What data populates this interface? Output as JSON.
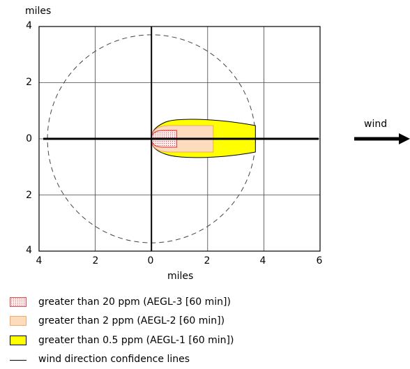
{
  "diagram": {
    "y_axis_title": "miles",
    "x_axis_title": "miles",
    "y_ticks": [
      "4",
      "2",
      "0",
      "2",
      "4"
    ],
    "x_ticks": [
      "4",
      "2",
      "0",
      "2",
      "4",
      "6"
    ],
    "x_range_miles": [
      -4,
      6
    ],
    "y_range_miles": [
      -4,
      4
    ],
    "wind_label": "wind",
    "wind_direction": "east",
    "confidence_circle_radius_miles": 3.7,
    "zones": {
      "aegl1_extent_miles": 3.7,
      "aegl2_extent_miles": 2.2,
      "aegl3_extent_miles": 0.9
    },
    "colors": {
      "aegl3_border": "#e8454a",
      "aegl2_fill": "#fddcbe",
      "aegl1_fill": "#ffff00"
    }
  },
  "legend": [
    {
      "label": "greater than 20 ppm (AEGL-3 [60 min])"
    },
    {
      "label": "greater than 2 ppm (AEGL-2 [60 min])"
    },
    {
      "label": "greater than 0.5 ppm (AEGL-1 [60 min])"
    },
    {
      "label": "wind direction confidence lines"
    }
  ]
}
